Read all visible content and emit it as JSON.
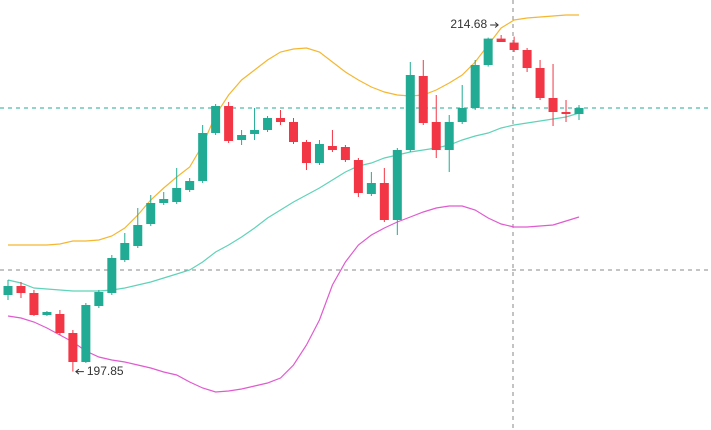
{
  "chart_data": {
    "type": "candlestick",
    "ylim": [
      194.93,
      216.43
    ],
    "up_color": "#22ab94",
    "down_color": "#f23645",
    "open": [
      201.68,
      202.13,
      201.78,
      200.68,
      200.73,
      199.78,
      198.33,
      201.13,
      201.78,
      203.43,
      204.13,
      205.23,
      206.28,
      206.33,
      206.93,
      207.38,
      209.78,
      211.13,
      209.43,
      209.73,
      209.93,
      210.53,
      210.33,
      209.33,
      208.28,
      209.13,
      209.08,
      208.43,
      206.73,
      207.28,
      205.43,
      208.93,
      212.63,
      210.33,
      208.93,
      210.33,
      211.03,
      213.18,
      214.5,
      214.3,
      213.93,
      213.03,
      211.53,
      210.83,
      210.73
    ],
    "high": [
      202.43,
      202.33,
      201.93,
      200.88,
      200.93,
      199.93,
      201.28,
      201.93,
      203.68,
      204.78,
      206.03,
      206.68,
      206.83,
      208.03,
      207.53,
      210.18,
      211.23,
      211.33,
      209.93,
      211.03,
      210.63,
      210.93,
      210.53,
      209.43,
      209.43,
      209.93,
      209.18,
      208.53,
      207.83,
      208.03,
      209.03,
      213.33,
      213.43,
      211.68,
      210.68,
      212.18,
      213.43,
      214.55,
      214.68,
      214.6,
      214.03,
      213.43,
      213.23,
      211.43,
      211.18
    ],
    "low": [
      201.43,
      201.53,
      200.63,
      200.63,
      199.68,
      197.85,
      198.28,
      201.03,
      201.68,
      203.33,
      204.03,
      205.13,
      206.18,
      206.23,
      206.83,
      207.28,
      209.68,
      209.28,
      209.18,
      209.43,
      209.83,
      210.18,
      209.23,
      207.93,
      208.18,
      208.83,
      208.33,
      206.58,
      206.63,
      205.33,
      204.68,
      208.83,
      210.18,
      208.53,
      207.83,
      210.23,
      210.93,
      213.1,
      214.43,
      213.83,
      212.83,
      211.43,
      210.13,
      210.33,
      210.43
    ],
    "close": [
      202.13,
      201.78,
      200.68,
      200.83,
      199.78,
      198.33,
      201.18,
      201.83,
      203.53,
      204.28,
      205.18,
      206.28,
      206.48,
      207.03,
      207.38,
      209.78,
      211.13,
      209.38,
      209.68,
      209.93,
      210.53,
      210.33,
      209.33,
      208.28,
      209.23,
      208.93,
      208.43,
      206.78,
      207.28,
      205.43,
      208.93,
      212.68,
      210.28,
      208.93,
      210.33,
      211.03,
      213.18,
      214.5,
      214.33,
      213.93,
      213.03,
      211.53,
      210.83,
      210.73,
      211.03
    ],
    "bands": [
      {
        "color": "#f5b731",
        "values": [
          204.18,
          204.18,
          204.18,
          204.18,
          204.23,
          204.38,
          204.38,
          204.43,
          204.63,
          205.03,
          205.68,
          206.43,
          207.03,
          207.58,
          208.08,
          209.18,
          210.68,
          211.68,
          212.43,
          212.93,
          213.43,
          213.83,
          213.98,
          214.03,
          213.83,
          213.33,
          212.83,
          212.43,
          212.08,
          211.83,
          211.68,
          211.63,
          211.68,
          211.93,
          212.28,
          212.68,
          213.33,
          214.18,
          215.03,
          215.43,
          215.53,
          215.58,
          215.63,
          215.68,
          215.68
        ]
      },
      {
        "color": "#5fd3b8",
        "values": [
          202.43,
          202.28,
          202.03,
          201.98,
          201.93,
          201.88,
          201.88,
          201.88,
          201.93,
          202.03,
          202.18,
          202.33,
          202.53,
          202.73,
          202.93,
          203.33,
          203.83,
          204.18,
          204.58,
          205.03,
          205.53,
          205.93,
          206.33,
          206.68,
          207.03,
          207.43,
          207.83,
          208.13,
          208.28,
          208.53,
          208.68,
          208.83,
          208.93,
          209.03,
          209.18,
          209.43,
          209.63,
          209.78,
          210.03,
          210.18,
          210.28,
          210.38,
          210.48,
          210.58,
          210.78
        ]
      },
      {
        "color": "#e05bd0",
        "values": [
          200.63,
          200.53,
          200.33,
          200.03,
          199.68,
          199.33,
          198.88,
          198.58,
          198.43,
          198.33,
          198.18,
          198.03,
          197.83,
          197.68,
          197.33,
          197.03,
          196.83,
          196.88,
          196.98,
          197.13,
          197.28,
          197.53,
          198.18,
          199.18,
          200.43,
          202.18,
          203.33,
          204.18,
          204.68,
          205.03,
          205.33,
          205.58,
          205.83,
          206.03,
          206.13,
          206.13,
          205.93,
          205.53,
          205.23,
          205.08,
          205.08,
          205.13,
          205.18,
          205.38,
          205.58
        ]
      }
    ]
  }
}
